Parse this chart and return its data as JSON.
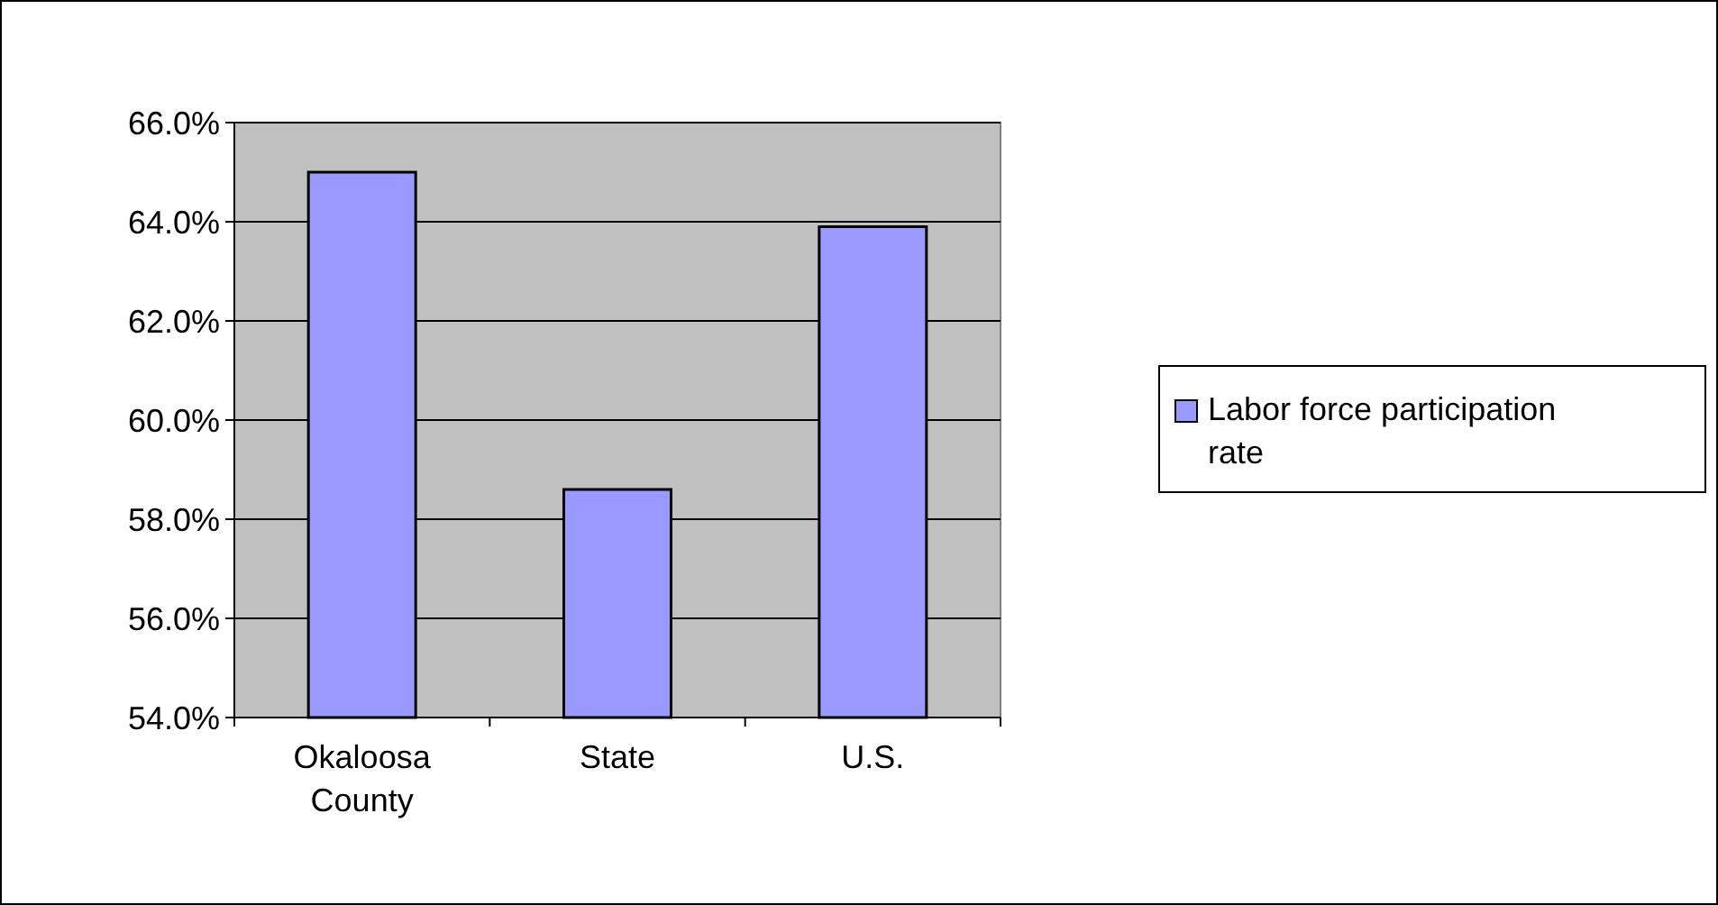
{
  "chart_data": {
    "type": "bar",
    "categories": [
      "Okaloosa County",
      "State",
      "U.S."
    ],
    "series": [
      {
        "name": "Labor force participation rate",
        "color": "#9999ff",
        "values": [
          65.0,
          58.6,
          63.9
        ]
      }
    ],
    "ylim": [
      54,
      66
    ],
    "yticks": [
      {
        "value": 54,
        "label": "54.0%"
      },
      {
        "value": 56,
        "label": "56.0%"
      },
      {
        "value": 58,
        "label": "58.0%"
      },
      {
        "value": 60,
        "label": "60.0%"
      },
      {
        "value": 62,
        "label": "62.0%"
      },
      {
        "value": 64,
        "label": "64.0%"
      },
      {
        "value": 66,
        "label": "66.0%"
      }
    ],
    "grid": "y",
    "legend": "right"
  }
}
